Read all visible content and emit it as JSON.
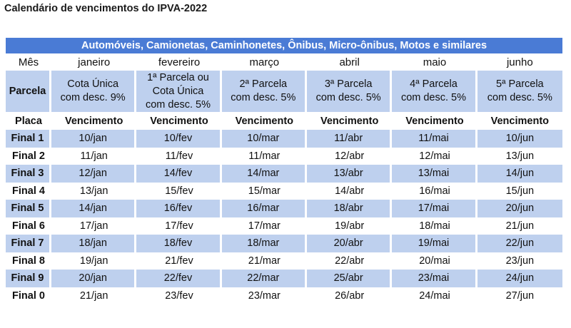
{
  "page": {
    "title": "Calendário de vencimentos do IPVA-2022"
  },
  "table": {
    "banner": "Automóveis, Camionetas, Caminhonetes, Ônibus, Micro-ônibus, Motos e similares",
    "mes_label": "Mês",
    "months": [
      "janeiro",
      "fevereiro",
      "março",
      "abril",
      "maio",
      "junho"
    ],
    "parcela_label": "Parcela",
    "parcelas": [
      [
        "Cota Única",
        "com desc. 9%"
      ],
      [
        "1ª Parcela ou",
        "Cota Única",
        "com desc. 5%"
      ],
      [
        "2ª Parcela",
        "com desc. 5%"
      ],
      [
        "3ª Parcela",
        "com desc. 5%"
      ],
      [
        "4ª Parcela",
        "com desc. 5%"
      ],
      [
        "5ª Parcela",
        "com desc. 5%"
      ]
    ],
    "placa_label": "Placa",
    "vencimento_label": "Vencimento",
    "rows": [
      {
        "final": "Final 1",
        "dates": [
          "10/jan",
          "10/fev",
          "10/mar",
          "11/abr",
          "11/mai",
          "10/jun"
        ]
      },
      {
        "final": "Final 2",
        "dates": [
          "11/jan",
          "11/fev",
          "11/mar",
          "12/abr",
          "12/mai",
          "13/jun"
        ]
      },
      {
        "final": "Final 3",
        "dates": [
          "12/jan",
          "14/fev",
          "14/mar",
          "13/abr",
          "13/mai",
          "14/jun"
        ]
      },
      {
        "final": "Final 4",
        "dates": [
          "13/jan",
          "15/fev",
          "15/mar",
          "14/abr",
          "16/mai",
          "15/jun"
        ]
      },
      {
        "final": "Final 5",
        "dates": [
          "14/jan",
          "16/fev",
          "16/mar",
          "18/abr",
          "17/mai",
          "20/jun"
        ]
      },
      {
        "final": "Final 6",
        "dates": [
          "17/jan",
          "17/fev",
          "17/mar",
          "19/abr",
          "18/mai",
          "21/jun"
        ]
      },
      {
        "final": "Final 7",
        "dates": [
          "18/jan",
          "18/fev",
          "18/mar",
          "20/abr",
          "19/mai",
          "22/jun"
        ]
      },
      {
        "final": "Final 8",
        "dates": [
          "19/jan",
          "21/fev",
          "21/mar",
          "22/abr",
          "20/mai",
          "23/jun"
        ]
      },
      {
        "final": "Final 9",
        "dates": [
          "20/jan",
          "22/fev",
          "22/mar",
          "25/abr",
          "23/mai",
          "24/jun"
        ]
      },
      {
        "final": "Final 0",
        "dates": [
          "21/jan",
          "23/fev",
          "23/mar",
          "26/abr",
          "24/mai",
          "27/jun"
        ]
      }
    ]
  },
  "colors": {
    "banner_bg": "#4a7bd5",
    "shade_bg": "#bed0ee",
    "text": "#111111"
  }
}
